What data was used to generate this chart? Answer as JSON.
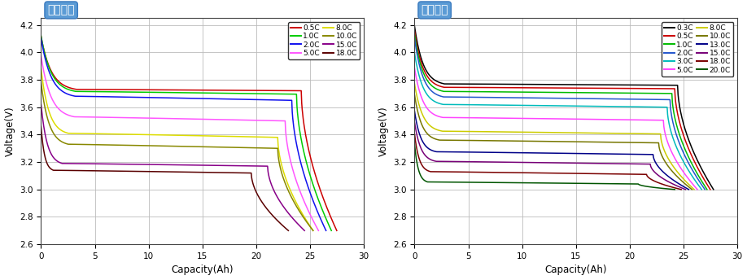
{
  "left_title": "시험시제",
  "right_title": "완성시제",
  "xlabel": "Capacity(Ah)",
  "ylabel": "Voltage(V)",
  "xlim": [
    0,
    30
  ],
  "ylim": [
    2.6,
    4.25
  ],
  "xticks": [
    0,
    5,
    10,
    15,
    20,
    25,
    30
  ],
  "yticks": [
    2.6,
    2.8,
    3.0,
    3.2,
    3.4,
    3.6,
    3.8,
    4.0,
    4.2
  ],
  "left_series": [
    {
      "label": "0.5C",
      "color": "#CC0000",
      "max_cap": 27.5,
      "v0": 4.115,
      "v_knee1": 3.73,
      "v_knee2": 3.72,
      "v_end": 2.7,
      "p1": 0.12,
      "p2": 0.88
    },
    {
      "label": "1.0C",
      "color": "#00CC00",
      "max_cap": 27.0,
      "v0": 4.12,
      "v_knee1": 3.715,
      "v_knee2": 3.695,
      "v_end": 2.7,
      "p1": 0.12,
      "p2": 0.88
    },
    {
      "label": "2.0C",
      "color": "#1010EE",
      "max_cap": 26.5,
      "v0": 4.105,
      "v_knee1": 3.68,
      "v_knee2": 3.65,
      "v_end": 2.7,
      "p1": 0.12,
      "p2": 0.88
    },
    {
      "label": "5.0C",
      "color": "#FF55FF",
      "max_cap": 25.8,
      "v0": 3.975,
      "v_knee1": 3.53,
      "v_knee2": 3.5,
      "v_end": 2.7,
      "p1": 0.12,
      "p2": 0.88
    },
    {
      "label": "8.0C",
      "color": "#DDDD00",
      "max_cap": 25.3,
      "v0": 3.88,
      "v_knee1": 3.41,
      "v_knee2": 3.38,
      "v_end": 2.7,
      "p1": 0.1,
      "p2": 0.87
    },
    {
      "label": "10.0C",
      "color": "#888800",
      "max_cap": 25.3,
      "v0": 3.78,
      "v_knee1": 3.33,
      "v_knee2": 3.3,
      "v_end": 2.7,
      "p1": 0.1,
      "p2": 0.87
    },
    {
      "label": "15.0C",
      "color": "#880088",
      "max_cap": 24.5,
      "v0": 3.62,
      "v_knee1": 3.19,
      "v_knee2": 3.17,
      "v_end": 2.7,
      "p1": 0.08,
      "p2": 0.86
    },
    {
      "label": "18.0C",
      "color": "#5A0000",
      "max_cap": 23.0,
      "v0": 3.46,
      "v_knee1": 3.14,
      "v_knee2": 3.12,
      "v_end": 2.7,
      "p1": 0.05,
      "p2": 0.85
    }
  ],
  "right_series": [
    {
      "label": "0.3C",
      "color": "#000000",
      "max_cap": 27.8,
      "v0": 4.19,
      "v_knee1": 3.77,
      "v_knee2": 3.76,
      "v_end": 3.0,
      "p1": 0.1,
      "p2": 0.88
    },
    {
      "label": "0.5C",
      "color": "#CC0000",
      "max_cap": 27.5,
      "v0": 4.155,
      "v_knee1": 3.745,
      "v_knee2": 3.735,
      "v_end": 3.0,
      "p1": 0.1,
      "p2": 0.88
    },
    {
      "label": "1.0C",
      "color": "#00BB00",
      "max_cap": 27.2,
      "v0": 4.13,
      "v_knee1": 3.715,
      "v_knee2": 3.7,
      "v_end": 3.0,
      "p1": 0.1,
      "p2": 0.88
    },
    {
      "label": "2.0C",
      "color": "#2255CC",
      "max_cap": 27.0,
      "v0": 4.1,
      "v_knee1": 3.675,
      "v_knee2": 3.655,
      "v_end": 3.0,
      "p1": 0.1,
      "p2": 0.88
    },
    {
      "label": "3.0C",
      "color": "#00BBBB",
      "max_cap": 26.7,
      "v0": 3.995,
      "v_knee1": 3.62,
      "v_knee2": 3.6,
      "v_end": 3.0,
      "p1": 0.1,
      "p2": 0.88
    },
    {
      "label": "5.0C",
      "color": "#FF44FF",
      "max_cap": 26.3,
      "v0": 3.885,
      "v_knee1": 3.525,
      "v_knee2": 3.505,
      "v_end": 3.0,
      "p1": 0.1,
      "p2": 0.88
    },
    {
      "label": "8.0C",
      "color": "#CCCC00",
      "max_cap": 26.0,
      "v0": 3.77,
      "v_knee1": 3.425,
      "v_knee2": 3.405,
      "v_end": 3.0,
      "p1": 0.1,
      "p2": 0.88
    },
    {
      "label": "10.0C",
      "color": "#777700",
      "max_cap": 25.8,
      "v0": 3.69,
      "v_knee1": 3.36,
      "v_knee2": 3.34,
      "v_end": 3.0,
      "p1": 0.09,
      "p2": 0.88
    },
    {
      "label": "13.0C",
      "color": "#000088",
      "max_cap": 25.5,
      "v0": 3.57,
      "v_knee1": 3.275,
      "v_knee2": 3.255,
      "v_end": 3.0,
      "p1": 0.08,
      "p2": 0.87
    },
    {
      "label": "15.0C",
      "color": "#770077",
      "max_cap": 25.2,
      "v0": 3.49,
      "v_knee1": 3.205,
      "v_knee2": 3.185,
      "v_end": 3.0,
      "p1": 0.08,
      "p2": 0.87
    },
    {
      "label": "18.0C",
      "color": "#7A0000",
      "max_cap": 24.8,
      "v0": 3.405,
      "v_knee1": 3.13,
      "v_knee2": 3.11,
      "v_end": 3.0,
      "p1": 0.06,
      "p2": 0.87
    },
    {
      "label": "20.0C",
      "color": "#005500",
      "max_cap": 24.2,
      "v0": 3.33,
      "v_knee1": 3.055,
      "v_knee2": 3.04,
      "v_end": 3.0,
      "p1": 0.05,
      "p2": 0.86
    }
  ],
  "title_box_color": "#5B9BD5",
  "background_color": "#FFFFFF",
  "grid_color": "#BBBBBB"
}
